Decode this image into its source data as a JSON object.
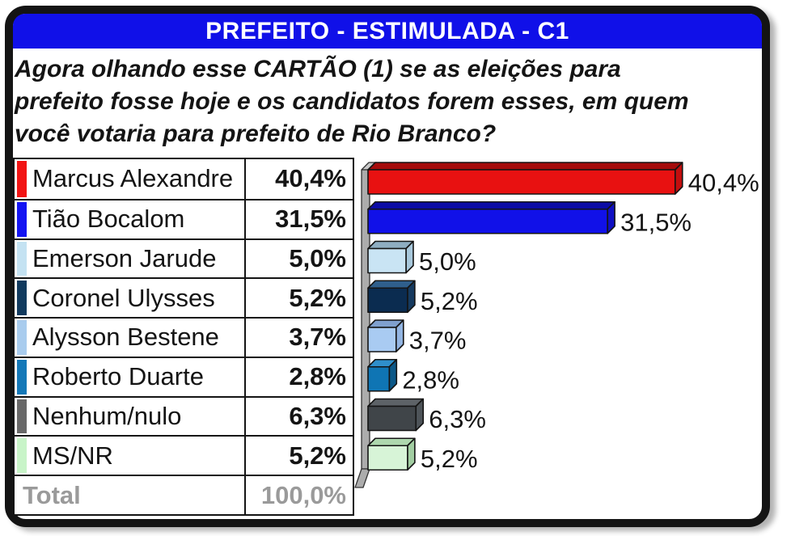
{
  "header": {
    "title": "PREFEITO - ESTIMULADA - C1"
  },
  "question": {
    "text": "Agora olhando esse CARTÃO (1) se as eleições para\nprefeito fosse hoje e os candidatos forem esses, em quem\nvocê votaria para prefeito de Rio Branco?"
  },
  "table": {
    "rows": [
      {
        "label": "Marcus Alexandre",
        "value": "40,4%",
        "swatch": "#f21414"
      },
      {
        "label": "Tião Bocalom",
        "value": "31,5%",
        "swatch": "#1414f2"
      },
      {
        "label": "Emerson Jarude",
        "value": "5,0%",
        "swatch": "#c4e2f2"
      },
      {
        "label": "Coronel Ulysses",
        "value": "5,2%",
        "swatch": "#113a5e"
      },
      {
        "label": "Alysson Bestene",
        "value": "3,7%",
        "swatch": "#a9ccee"
      },
      {
        "label": "Roberto Duarte",
        "value": "2,8%",
        "swatch": "#1478b8"
      },
      {
        "label": "Nenhum/nulo",
        "value": "6,3%",
        "swatch": "#686868"
      },
      {
        "label": "MS/NR",
        "value": "5,2%",
        "swatch": "#c8f4c8"
      }
    ],
    "total": {
      "label": "Total",
      "value": "100,0%"
    }
  },
  "chart_data": {
    "type": "bar",
    "orientation": "horizontal",
    "title": "PREFEITO - ESTIMULADA - C1",
    "categories": [
      "Marcus Alexandre",
      "Tião Bocalom",
      "Emerson Jarude",
      "Coronel Ulysses",
      "Alysson Bestene",
      "Roberto Duarte",
      "Nenhum/nulo",
      "MS/NR"
    ],
    "values": [
      40.4,
      31.5,
      5.0,
      5.2,
      3.7,
      2.8,
      6.3,
      5.2
    ],
    "value_labels": [
      "40,4%",
      "31,5%",
      "5,0%",
      "5,2%",
      "3,7%",
      "2,8%",
      "6,3%",
      "5,2%"
    ],
    "total_label": "100,0%",
    "xlim": [
      0,
      43
    ],
    "grid": false,
    "legend": false,
    "style": "3d-extruded",
    "bar_colors": [
      {
        "front": "#e81111",
        "top": "#a50c0c",
        "side": "#c30e0e"
      },
      {
        "front": "#1111e8",
        "top": "#0c0ca5",
        "side": "#0e0ec3"
      },
      {
        "front": "#c9e4f4",
        "top": "#8faec2",
        "side": "#a8c8dc"
      },
      {
        "front": "#0b2c50",
        "top": "#2f5f8c",
        "side": "#163a5f"
      },
      {
        "front": "#a9cbf2",
        "top": "#7fa0ce",
        "side": "#93b5e2"
      },
      {
        "front": "#0f75b4",
        "top": "#2f8fcb",
        "side": "#0b5888"
      },
      {
        "front": "#404549",
        "top": "#5d6267",
        "side": "#4e5459"
      },
      {
        "front": "#d7f4d7",
        "top": "#aed8ae",
        "side": "#a2cea2"
      }
    ],
    "axis_wall": {
      "front": "#acacac",
      "top": "#c9c9c9"
    },
    "colors": {
      "header_bg": "#1010e8",
      "frame": "#141414",
      "total_text": "#9a9a9a",
      "label_text": "#141414"
    }
  }
}
